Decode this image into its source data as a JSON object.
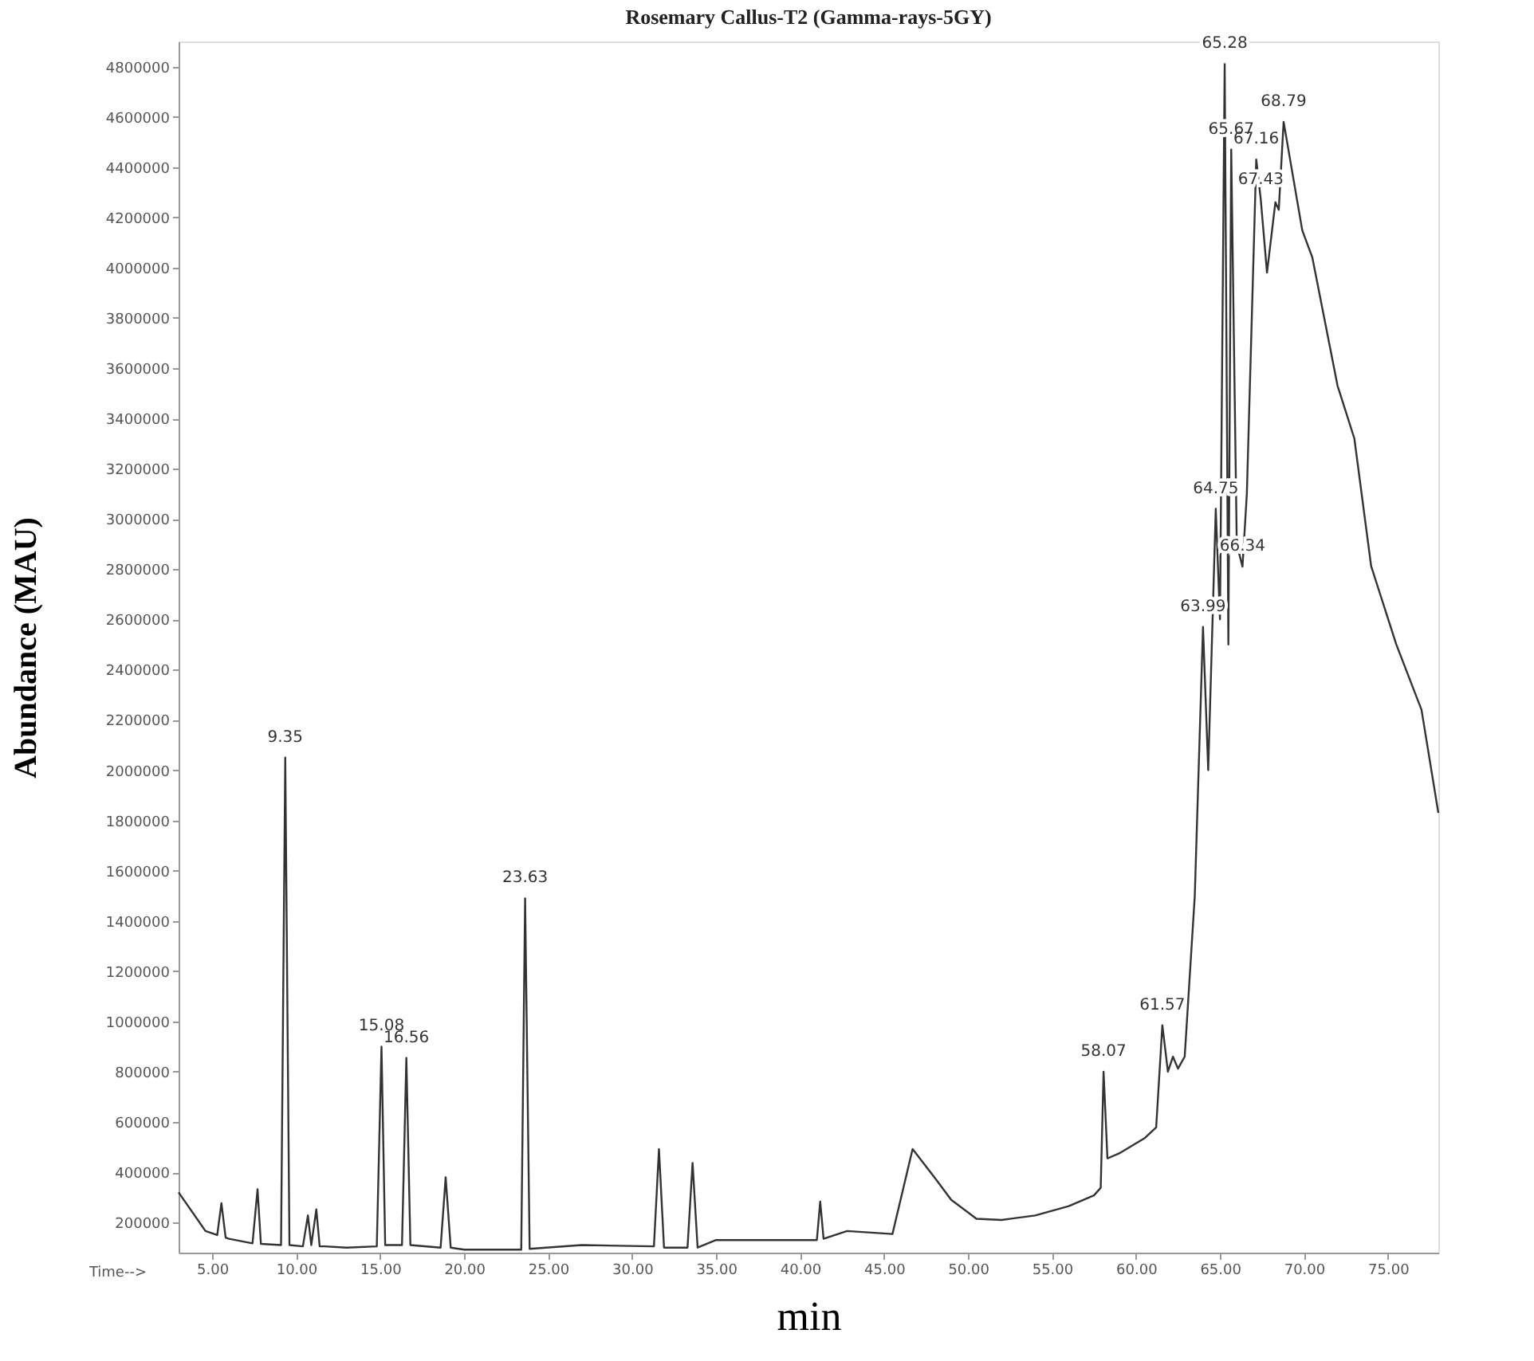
{
  "chart_data": {
    "type": "line",
    "title": "Rosemary Callus-T2 (Gamma-rays-5GY)",
    "xlabel": "min",
    "ylabel": "Abundance (MAU)",
    "xlim": [
      3,
      78
    ],
    "ylim": [
      80000,
      4900000
    ],
    "xticks": [
      {
        "value": 5,
        "label": "5.00"
      },
      {
        "value": 10,
        "label": "10.00"
      },
      {
        "value": 15,
        "label": "15.00"
      },
      {
        "value": 20,
        "label": "20.00"
      },
      {
        "value": 25,
        "label": "25.00"
      },
      {
        "value": 30,
        "label": "30.00"
      },
      {
        "value": 35,
        "label": "35.00"
      },
      {
        "value": 40,
        "label": "40.00"
      },
      {
        "value": 45,
        "label": "45.00"
      },
      {
        "value": 50,
        "label": "50.00"
      },
      {
        "value": 55,
        "label": "55.00"
      },
      {
        "value": 60,
        "label": "60.00"
      },
      {
        "value": 65,
        "label": "65.00"
      },
      {
        "value": 70,
        "label": "70.00"
      },
      {
        "value": 75,
        "label": "75.00"
      }
    ],
    "yticks": [
      200000,
      400000,
      600000,
      800000,
      1000000,
      1200000,
      1400000,
      1600000,
      1800000,
      2000000,
      2200000,
      2400000,
      2600000,
      2800000,
      3000000,
      3200000,
      3400000,
      3600000,
      3800000,
      4000000,
      4200000,
      4400000,
      4600000,
      4800000
    ],
    "grid": false,
    "line_style": "solid",
    "marker": "none",
    "series": [
      {
        "color": "#333333",
        "x": [
          3.0,
          4.6,
          5.3,
          5.55,
          5.8,
          6.0,
          7.4,
          7.7,
          7.9,
          9.1,
          9.35,
          9.6,
          10.4,
          10.7,
          10.9,
          11.2,
          11.4,
          11.7,
          13,
          14.8,
          15.08,
          15.3,
          16.3,
          16.56,
          16.8,
          18.6,
          18.9,
          19.2,
          20,
          23.4,
          23.63,
          23.9,
          27,
          31.3,
          31.6,
          31.9,
          33.3,
          33.6,
          33.9,
          35,
          41.0,
          41.2,
          41.4,
          42.8,
          45.5,
          46.7,
          48.0,
          49.0,
          50.5,
          52,
          54,
          56,
          57.5,
          57.9,
          58.07,
          58.3,
          59,
          60.5,
          61.2,
          61.57,
          61.9,
          62.2,
          62.5,
          62.9,
          63.5,
          63.99,
          64.3,
          64.75,
          65.0,
          65.28,
          65.5,
          65.67,
          66.0,
          66.34,
          66.6,
          67.16,
          67.43,
          67.8,
          68.3,
          68.5,
          68.79,
          69.9,
          70.5,
          72,
          73,
          74,
          74.5,
          75.5,
          77,
          78
        ],
        "values": [
          320000,
          166000,
          150000,
          277000,
          140000,
          135000,
          117000,
          332000,
          115000,
          110000,
          2050000,
          110000,
          105000,
          228000,
          110000,
          252000,
          105000,
          105000,
          100000,
          105000,
          900000,
          110000,
          110000,
          855000,
          110000,
          100000,
          380000,
          100000,
          92000,
          92000,
          1490000,
          95000,
          110000,
          105000,
          492000,
          100000,
          100000,
          437000,
          100000,
          130000,
          130000,
          283000,
          135000,
          166000,
          154000,
          492000,
          380000,
          290000,
          215000,
          210000,
          228000,
          265000,
          308000,
          338000,
          800000,
          455000,
          475000,
          535000,
          578000,
          985000,
          800000,
          860000,
          812000,
          860000,
          1500000,
          2570000,
          2000000,
          3040000,
          2600000,
          4810000,
          2500000,
          4470000,
          2900000,
          2810000,
          3100000,
          4430000,
          4270000,
          3980000,
          4260000,
          4230000,
          4580000,
          4148000,
          4040000,
          3530000,
          3320000,
          2812000,
          2708000,
          2500000,
          2240000,
          1830000
        ]
      }
    ],
    "annotations": [
      {
        "text": "9.35",
        "x": 9.35,
        "y": 2050000
      },
      {
        "text": "15.08",
        "x": 15.08,
        "y": 900000
      },
      {
        "text": "16.56",
        "x": 16.56,
        "y": 855000
      },
      {
        "text": "23.63",
        "x": 23.63,
        "y": 1490000
      },
      {
        "text": "58.07",
        "x": 58.07,
        "y": 800000
      },
      {
        "text": "61.57",
        "x": 61.57,
        "y": 985000
      },
      {
        "text": "63.99",
        "x": 63.99,
        "y": 2570000
      },
      {
        "text": "64.75",
        "x": 64.75,
        "y": 3040000
      },
      {
        "text": "65.28",
        "x": 65.28,
        "y": 4810000
      },
      {
        "text": "65.67",
        "x": 65.67,
        "y": 4470000
      },
      {
        "text": "66.34",
        "x": 66.34,
        "y": 2810000
      },
      {
        "text": "67.16",
        "x": 67.16,
        "y": 4430000
      },
      {
        "text": "67.43",
        "x": 67.43,
        "y": 4270000
      },
      {
        "text": "68.79",
        "x": 68.79,
        "y": 4580000
      },
      "Time-->"
    ]
  }
}
